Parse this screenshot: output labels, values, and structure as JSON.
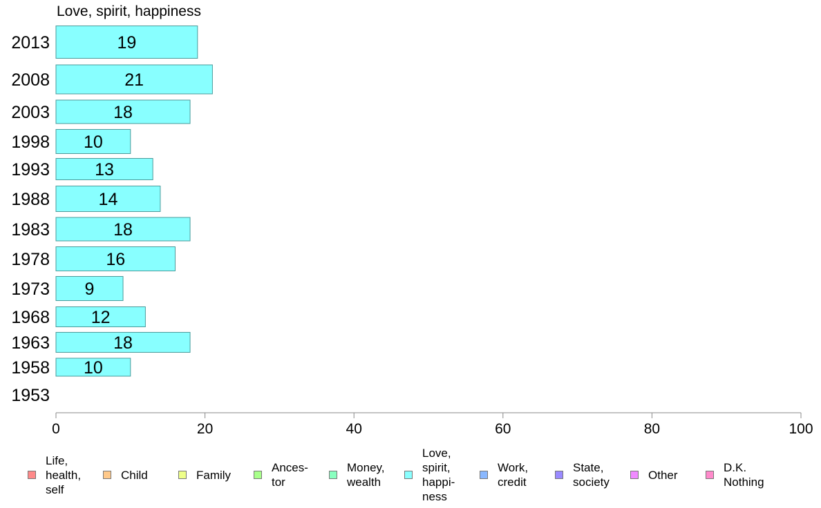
{
  "chart_data": {
    "type": "bar",
    "orientation": "horizontal",
    "title": "Love, spirit, happiness",
    "categories": [
      "2013",
      "2008",
      "2003",
      "1998",
      "1993",
      "1988",
      "1983",
      "1978",
      "1973",
      "1968",
      "1963",
      "1958",
      "1953"
    ],
    "series": [
      {
        "name": "Love, spirit, happiness",
        "values": [
          19,
          21,
          18,
          10,
          13,
          14,
          18,
          16,
          9,
          12,
          18,
          10,
          null
        ],
        "data_labels": [
          "19",
          "21",
          "18",
          "10",
          "13",
          "14",
          "18",
          "16",
          "9",
          "12",
          "18",
          "10",
          ""
        ]
      }
    ],
    "xlim": [
      0,
      100
    ],
    "x_ticks": [
      "0",
      "20",
      "40",
      "60",
      "80",
      "100"
    ],
    "grid": false,
    "legend_position": "bottom",
    "legend": [
      {
        "label": "Life,\nhealth,\nself",
        "color": "#ff8a8a"
      },
      {
        "label": "Child",
        "color": "#ffc98a"
      },
      {
        "label": "Family",
        "color": "#eeff8a"
      },
      {
        "label": "Ances-\ntor",
        "color": "#a8ff8a"
      },
      {
        "label": "Money,\nwealth",
        "color": "#8affc0"
      },
      {
        "label": "Love,\nspirit,\nhappi-\nness",
        "color": "#8affff"
      },
      {
        "label": "Work,\ncredit",
        "color": "#8ab8ff"
      },
      {
        "label": "State,\nsociety",
        "color": "#9a8aff"
      },
      {
        "label": "Other",
        "color": "#f08aff"
      },
      {
        "label": "D.K.\nNothing",
        "color": "#ff8acb"
      }
    ],
    "bar_color": "#88ffff",
    "bar_edge_color": "#4a9a9a",
    "axis_color": "#888888"
  }
}
